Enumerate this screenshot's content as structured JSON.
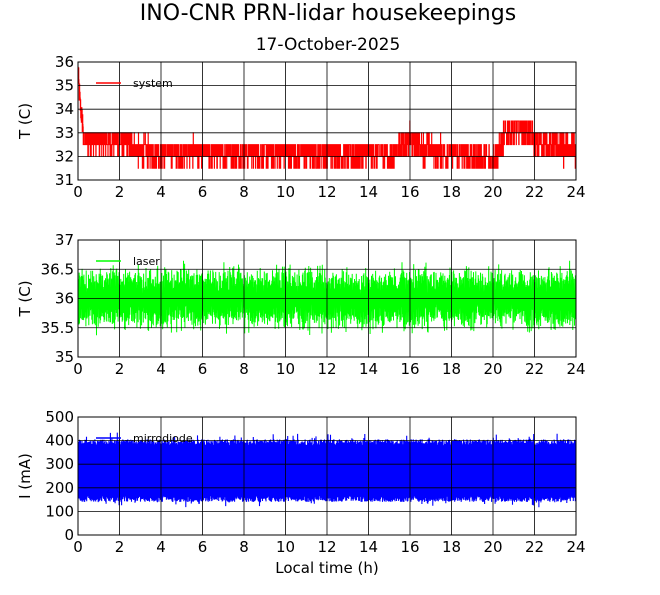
{
  "title": "INO-CNR PRN-lidar housekeepings",
  "subtitle": "17-October-2025",
  "chart_data": [
    {
      "type": "line",
      "ylabel": "T (C)",
      "xlabel": "",
      "xlim": [
        0,
        24
      ],
      "ylim": [
        31,
        36
      ],
      "xticks": [
        "0",
        "2",
        "4",
        "6",
        "8",
        "10",
        "12",
        "14",
        "16",
        "18",
        "20",
        "22",
        "24"
      ],
      "yticks": [
        "31",
        "32",
        "33",
        "34",
        "35",
        "36"
      ],
      "grid": true,
      "series": [
        {
          "name": "system",
          "color": "#ff0000",
          "kind": "step",
          "levels": [
            31.5,
            32,
            32.5,
            33,
            33.5
          ],
          "baseline": [
            [
              0,
              33
            ],
            [
              0.1,
              33
            ],
            [
              0.2,
              32.7
            ],
            [
              1.5,
              32.6
            ],
            [
              2.5,
              32.5
            ],
            [
              3.0,
              32.2
            ],
            [
              14.8,
              32.1
            ],
            [
              15.0,
              31.8
            ],
            [
              15.4,
              32.3
            ],
            [
              16.0,
              32.7
            ],
            [
              16.6,
              32.3
            ],
            [
              19.9,
              31.9
            ],
            [
              20.3,
              32.3
            ],
            [
              20.6,
              33.0
            ],
            [
              21.5,
              33.2
            ],
            [
              22.2,
              32.5
            ],
            [
              24,
              32.2
            ]
          ],
          "spike_start": [
            [
              0,
              35.6
            ],
            [
              0.1,
              34.2
            ],
            [
              0.2,
              33.5
            ]
          ]
        }
      ]
    },
    {
      "type": "line",
      "ylabel": "T (C)",
      "xlabel": "",
      "xlim": [
        0,
        24
      ],
      "ylim": [
        35,
        37
      ],
      "xticks": [
        "0",
        "2",
        "4",
        "6",
        "8",
        "10",
        "12",
        "14",
        "16",
        "18",
        "20",
        "22",
        "24"
      ],
      "yticks": [
        "35",
        "35.5",
        "36",
        "36.5",
        "37"
      ],
      "grid": true,
      "series": [
        {
          "name": "laser",
          "color": "#00ff00",
          "kind": "oscillation",
          "center": 36.0,
          "min": 35.2,
          "max": 36.8,
          "mean_amplitude": 0.45
        }
      ]
    },
    {
      "type": "line",
      "ylabel": "I (mA)",
      "xlabel": "Local time (h)",
      "xlim": [
        0,
        24
      ],
      "ylim": [
        0,
        500
      ],
      "xticks": [
        "0",
        "2",
        "4",
        "6",
        "8",
        "10",
        "12",
        "14",
        "16",
        "18",
        "20",
        "22",
        "24"
      ],
      "yticks": [
        "0",
        "100",
        "200",
        "300",
        "400",
        "500"
      ],
      "grid": true,
      "series": [
        {
          "name": "mirrodiode",
          "color": "#0000ff",
          "kind": "band",
          "center": 270,
          "min": 115,
          "max": 440,
          "typical_low": 140,
          "typical_high": 405
        }
      ]
    }
  ]
}
